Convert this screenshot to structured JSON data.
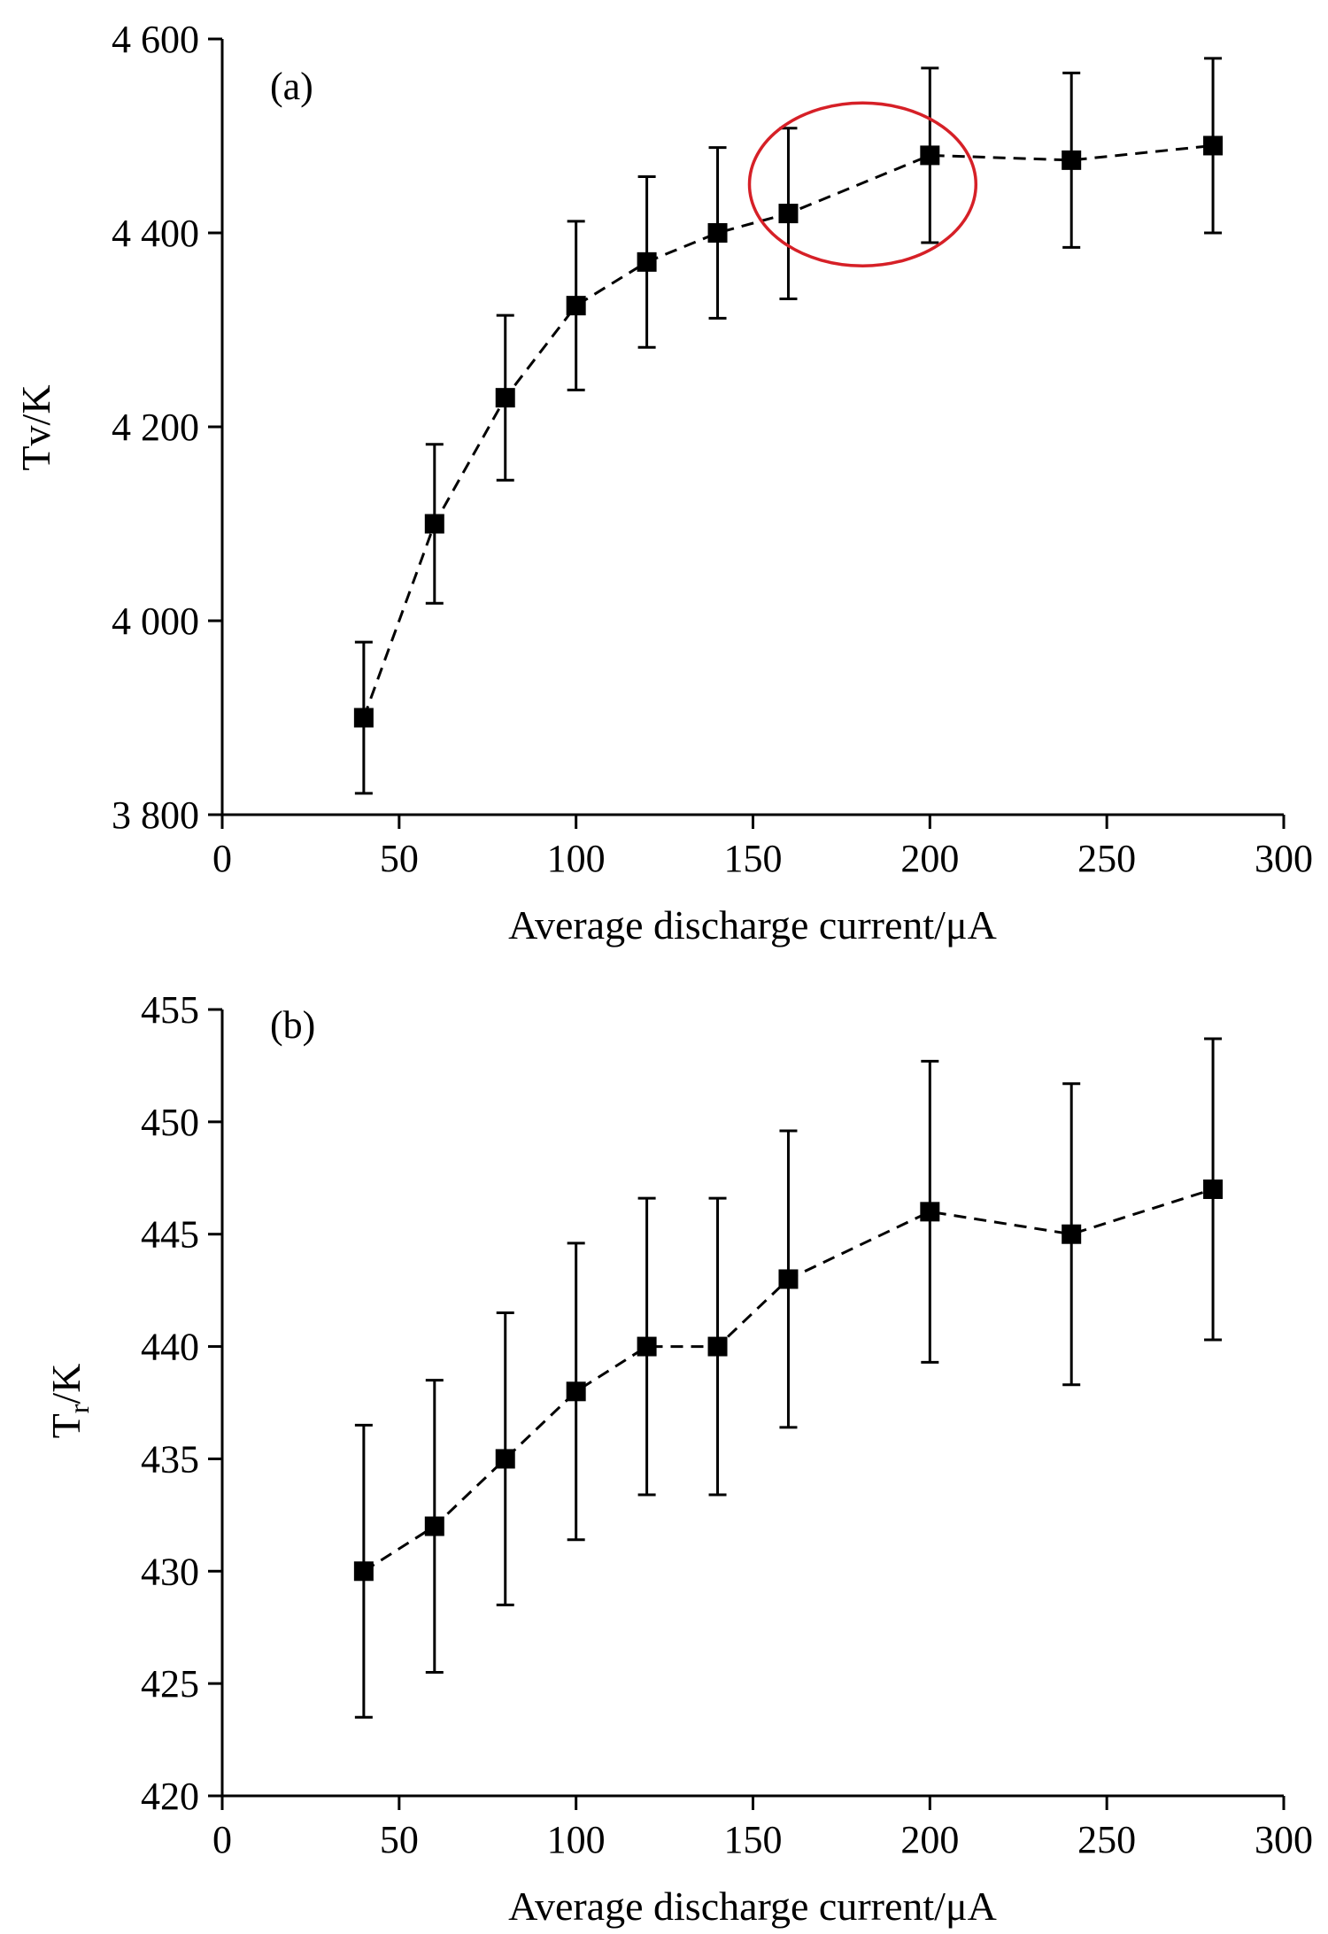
{
  "figure": {
    "colors": {
      "ink": "#000000",
      "highlight": "#d62027",
      "background": "#ffffff"
    }
  },
  "chart_data": [
    {
      "type": "line",
      "panel_label": "(a)",
      "xlabel": "Average discharge current/μA",
      "ylabel": "Tv/K",
      "xlim": [
        0,
        300
      ],
      "ylim": [
        3800,
        4600
      ],
      "xticks": [
        0,
        50,
        100,
        150,
        200,
        250,
        300
      ],
      "xtick_labels": [
        "0",
        "50",
        "100",
        "150",
        "200",
        "250",
        "300"
      ],
      "yticks": [
        3800,
        4000,
        4200,
        4400,
        4600
      ],
      "ytick_labels": [
        "3 800",
        "4 000",
        "4 200",
        "4 400",
        "4 600"
      ],
      "grid": false,
      "marker": "square",
      "line_style": "dashed",
      "x": [
        40,
        60,
        80,
        100,
        120,
        140,
        160,
        200,
        240,
        280
      ],
      "y": [
        3900,
        4100,
        4230,
        4325,
        4370,
        4400,
        4420,
        4480,
        4475,
        4490
      ],
      "error": [
        78,
        82,
        85,
        87,
        88,
        88,
        88,
        90,
        90,
        90
      ],
      "annotation": {
        "type": "ellipse",
        "color": "#d62027",
        "center": [
          181,
          4450
        ],
        "radius_x": 32,
        "radius_y": 84
      }
    },
    {
      "type": "line",
      "panel_label": "(b)",
      "xlabel": "Average discharge current/μA",
      "ylabel": "T",
      "ylabel_subscript": "r",
      "ylabel_suffix": "/K",
      "xlim": [
        0,
        300
      ],
      "ylim": [
        420,
        455
      ],
      "xticks": [
        0,
        50,
        100,
        150,
        200,
        250,
        300
      ],
      "xtick_labels": [
        "0",
        "50",
        "100",
        "150",
        "200",
        "250",
        "300"
      ],
      "yticks": [
        420,
        425,
        430,
        435,
        440,
        445,
        450,
        455
      ],
      "ytick_labels": [
        "420",
        "425",
        "430",
        "435",
        "440",
        "445",
        "450",
        "455"
      ],
      "grid": false,
      "marker": "square",
      "line_style": "dashed",
      "x": [
        40,
        60,
        80,
        100,
        120,
        140,
        160,
        200,
        240,
        280
      ],
      "y": [
        430,
        432,
        435,
        438,
        440,
        440,
        443,
        446,
        445,
        447
      ],
      "error": [
        6.5,
        6.5,
        6.5,
        6.6,
        6.6,
        6.6,
        6.6,
        6.7,
        6.7,
        6.7
      ]
    }
  ]
}
